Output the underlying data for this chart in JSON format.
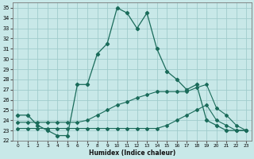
{
  "xlabel": "Humidex (Indice chaleur)",
  "xlim": [
    -0.5,
    23.5
  ],
  "ylim": [
    22,
    35.5
  ],
  "yticks": [
    22,
    23,
    24,
    25,
    26,
    27,
    28,
    29,
    30,
    31,
    32,
    33,
    34,
    35
  ],
  "xticks": [
    0,
    1,
    2,
    3,
    4,
    5,
    6,
    7,
    8,
    9,
    10,
    11,
    12,
    13,
    14,
    15,
    16,
    17,
    18,
    19,
    20,
    21,
    22,
    23
  ],
  "bg_color": "#c8e8e8",
  "grid_color": "#a0cccc",
  "line_color": "#1a6b5a",
  "line1_x": [
    0,
    1,
    2,
    3,
    4,
    5,
    6,
    7,
    8,
    9,
    10,
    11,
    12,
    13,
    14,
    15,
    16,
    17,
    18,
    19,
    20,
    21,
    22,
    23
  ],
  "line1_y": [
    24.5,
    24.5,
    23.5,
    23.0,
    22.5,
    22.5,
    27.5,
    27.5,
    30.5,
    31.5,
    35.0,
    34.5,
    33.0,
    34.5,
    31.0,
    28.8,
    28.0,
    27.0,
    27.5,
    24.0,
    23.5,
    23.0,
    23.0,
    23.0
  ],
  "line2_x": [
    0,
    1,
    2,
    3,
    4,
    5,
    6,
    7,
    8,
    9,
    10,
    11,
    12,
    13,
    14,
    15,
    16,
    17,
    18,
    19,
    20,
    21,
    22,
    23
  ],
  "line2_y": [
    23.2,
    23.2,
    23.2,
    23.2,
    23.2,
    23.2,
    23.2,
    23.2,
    23.2,
    23.2,
    23.2,
    23.2,
    23.2,
    23.2,
    23.2,
    23.5,
    24.0,
    24.5,
    25.0,
    25.5,
    24.0,
    23.5,
    23.0,
    23.0
  ],
  "line3_x": [
    0,
    1,
    2,
    3,
    4,
    5,
    6,
    7,
    8,
    9,
    10,
    11,
    12,
    13,
    14,
    15,
    16,
    17,
    18,
    19,
    20,
    21,
    22,
    23
  ],
  "line3_y": [
    23.8,
    23.8,
    23.8,
    23.8,
    23.8,
    23.8,
    23.8,
    24.0,
    24.5,
    25.0,
    25.5,
    25.8,
    26.2,
    26.5,
    26.8,
    26.8,
    26.8,
    26.8,
    27.2,
    27.5,
    25.2,
    24.5,
    23.5,
    23.0
  ]
}
